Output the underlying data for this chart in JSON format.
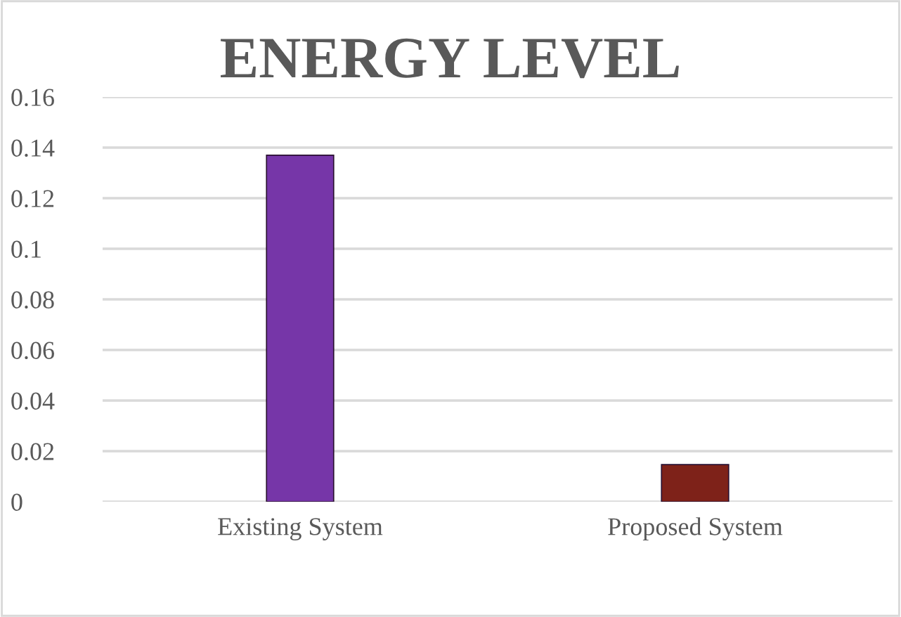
{
  "chart_data": {
    "type": "bar",
    "title": "ENERGY LEVEL",
    "categories": [
      "Existing System",
      "Proposed System"
    ],
    "values": [
      0.137,
      0.0147
    ],
    "colors": [
      "#7636a8",
      "#7e2219"
    ],
    "ylim": [
      0,
      0.16
    ],
    "yticks": [
      0,
      {
        "value": 0.02,
        "label": "0.02"
      },
      {
        "value": 0.04,
        "label": "0.04"
      },
      {
        "value": 0.06,
        "label": "0.06"
      },
      {
        "value": 0.08,
        "label": "0.08"
      },
      {
        "value": 0.1,
        "label": "0.1"
      },
      {
        "value": 0.12,
        "label": "0.12"
      },
      {
        "value": 0.14,
        "label": "0.14"
      },
      {
        "value": 0.16,
        "label": "0.16"
      }
    ],
    "grid": "y",
    "legend": false
  }
}
